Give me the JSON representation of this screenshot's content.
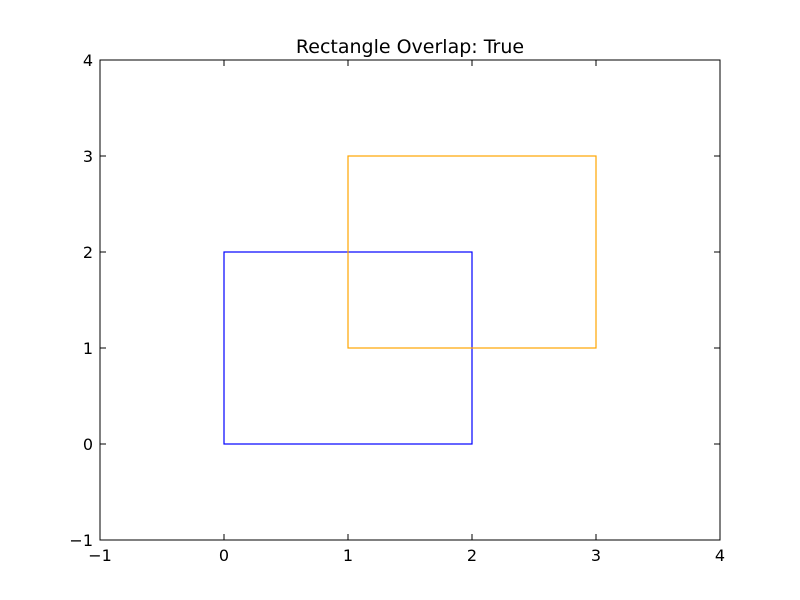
{
  "chart_data": {
    "type": "rectangles",
    "title": "Rectangle Overlap: True",
    "xlabel": "",
    "ylabel": "",
    "xlim": [
      -1,
      4
    ],
    "ylim": [
      -1,
      4
    ],
    "grid": false,
    "x_ticks": [
      -1,
      0,
      1,
      2,
      3,
      4
    ],
    "y_ticks": [
      -1,
      0,
      1,
      2,
      3,
      4
    ],
    "x_tick_labels": [
      "−1",
      "0",
      "1",
      "2",
      "3",
      "4"
    ],
    "y_tick_labels": [
      "−1",
      "0",
      "1",
      "2",
      "3",
      "4"
    ],
    "series": [
      {
        "x_min": 0,
        "y_min": 0,
        "x_max": 2,
        "y_max": 2,
        "color": "#0000ff"
      },
      {
        "x_min": 1,
        "y_min": 1,
        "x_max": 3,
        "y_max": 3,
        "color": "#ffa500"
      }
    ]
  }
}
